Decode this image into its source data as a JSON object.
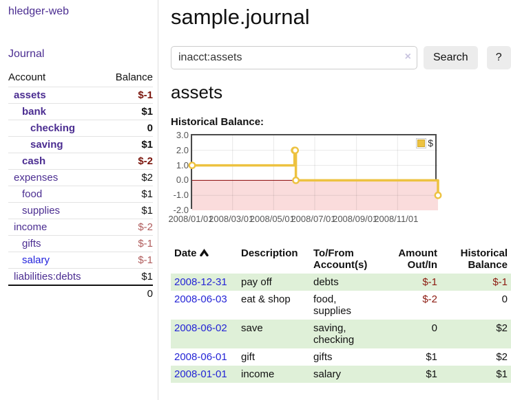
{
  "app": {
    "brand": "hledger-web",
    "nav_journal": "Journal"
  },
  "sidebar": {
    "header": {
      "account": "Account",
      "balance": "Balance"
    },
    "accounts": [
      {
        "name": "assets",
        "balance": "$-1"
      },
      {
        "name": "bank",
        "balance": "$1"
      },
      {
        "name": "checking",
        "balance": "0"
      },
      {
        "name": "saving",
        "balance": "$1"
      },
      {
        "name": "cash",
        "balance": "$-2"
      },
      {
        "name": "expenses",
        "balance": "$2"
      },
      {
        "name": "food",
        "balance": "$1"
      },
      {
        "name": "supplies",
        "balance": "$1"
      },
      {
        "name": "income",
        "balance": "$-2"
      },
      {
        "name": "gifts",
        "balance": "$-1"
      },
      {
        "name": "salary",
        "balance": "$-1"
      },
      {
        "name": "liabilities:debts",
        "balance": "$1"
      }
    ],
    "total": "0"
  },
  "header": {
    "title": "sample.journal"
  },
  "search": {
    "value": "inacct:assets",
    "clear_icon": "×",
    "button": "Search",
    "help": "?"
  },
  "account_view": {
    "title": "assets",
    "chart_heading": "Historical Balance:"
  },
  "chart_data": {
    "type": "line",
    "title": "Historical Balance:",
    "step": true,
    "series": [
      {
        "name": "$",
        "color": "#edc240",
        "points": [
          [
            "2008/01/01",
            1
          ],
          [
            "2008/06/01",
            2
          ],
          [
            "2008/06/02",
            2
          ],
          [
            "2008/06/03",
            0
          ],
          [
            "2008/12/31",
            -1
          ]
        ]
      }
    ],
    "x_range": [
      "2008/01/01",
      "2008/12/31"
    ],
    "x_ticks": [
      "2008/01/01",
      "2008/03/01",
      "2008/05/01",
      "2008/07/01",
      "2008/09/01",
      "2008/11/01"
    ],
    "y_ticks": [
      "3.0",
      "2.0",
      "1.0",
      "0.0",
      "-1.0",
      "-2.0"
    ],
    "ylim": [
      -2,
      3
    ],
    "grid": true,
    "zero_line_color": "#880000",
    "negative_region_color": "#fadcdc",
    "legend": {
      "label": "$",
      "position": "top-right"
    }
  },
  "register": {
    "columns": {
      "date": "Date",
      "description": "Description",
      "accounts": "To/From\nAccount(s)",
      "amount": "Amount\nOut/In",
      "balance": "Historical\nBalance"
    },
    "rows": [
      {
        "date": "2008-12-31",
        "description": "pay off",
        "accounts": "debts",
        "amount": "$-1",
        "balance": "$-1"
      },
      {
        "date": "2008-06-03",
        "description": "eat & shop",
        "accounts": "food, supplies",
        "amount": "$-2",
        "balance": "0"
      },
      {
        "date": "2008-06-02",
        "description": "save",
        "accounts": "saving,\nchecking",
        "amount": "0",
        "balance": "$2"
      },
      {
        "date": "2008-06-01",
        "description": "gift",
        "accounts": "gifts",
        "amount": "$1",
        "balance": "$2"
      },
      {
        "date": "2008-01-01",
        "description": "income",
        "accounts": "salary",
        "amount": "$1",
        "balance": "$1"
      }
    ]
  },
  "colors": {
    "link_purple": "#4b2d91",
    "link_blue": "#2222dd",
    "negative": "#7a150c",
    "negative_muted": "#b05c5c",
    "series_yellow": "#edc240",
    "negative_region": "#fadcdc",
    "row_shaded": "#dff0d8"
  }
}
